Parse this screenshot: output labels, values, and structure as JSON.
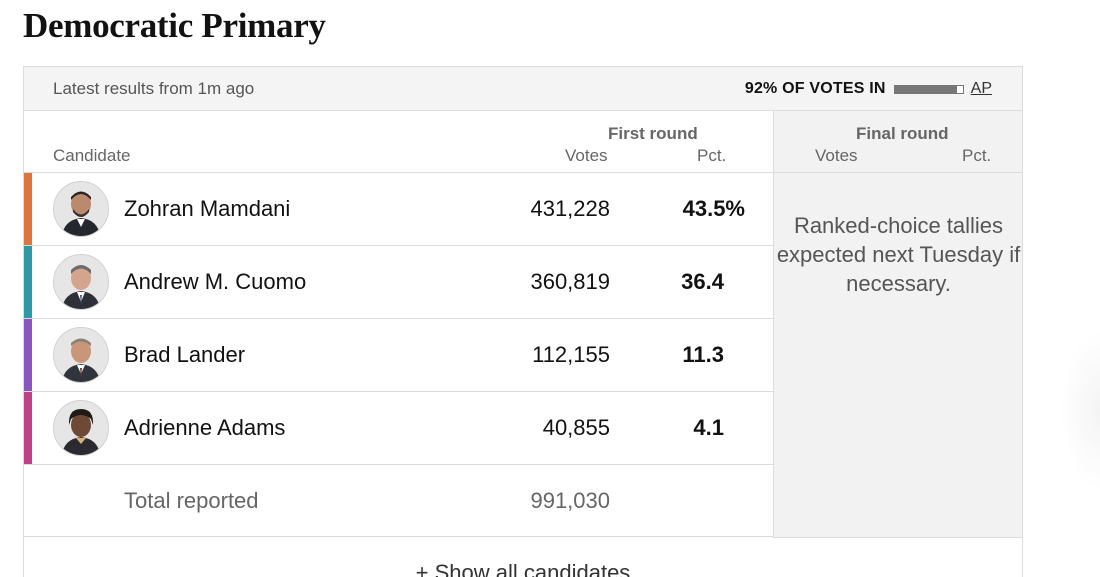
{
  "page": {
    "title": "Democratic Primary"
  },
  "status": {
    "latest": "Latest results from 1m ago",
    "votes_in": "92% OF VOTES IN",
    "votes_in_fraction": 0.92,
    "source": "AP"
  },
  "headers": {
    "candidate": "Candidate",
    "first_round": "First round",
    "final_round": "Final round",
    "votes": "Votes",
    "pct": "Pct."
  },
  "candidates": [
    {
      "name": "Zohran Mamdani",
      "votes": "431,228",
      "pct": "43.5%",
      "color": "#e0733a"
    },
    {
      "name": "Andrew M. Cuomo",
      "votes": "360,819",
      "pct": "36.4",
      "color": "#2b9aa6"
    },
    {
      "name": "Brad Lander",
      "votes": "112,155",
      "pct": "11.3",
      "color": "#8a55c0"
    },
    {
      "name": "Adrienne Adams",
      "votes": "40,855",
      "pct": "4.1",
      "color": "#c23e86"
    }
  ],
  "total": {
    "label": "Total reported",
    "votes": "991,030"
  },
  "final_round_note": "Ranked-choice tallies expected next Tuesday if necessary.",
  "show_all": "+ Show all candidates"
}
